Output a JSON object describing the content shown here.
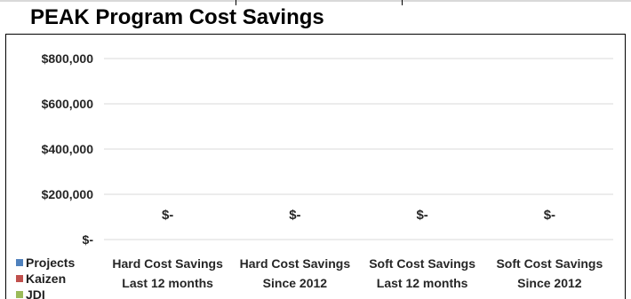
{
  "chart_data": {
    "type": "bar",
    "title": "PEAK Program Cost Savings",
    "categories": [
      "Hard Cost Savings Last 12 months",
      "Hard Cost Savings Since 2012",
      "Soft Cost Savings Last 12 months",
      "Soft Cost Savings Since 2012"
    ],
    "category_lines": [
      [
        "Hard Cost Savings",
        "Last 12 months"
      ],
      [
        "Hard Cost Savings",
        "Since 2012"
      ],
      [
        "Soft Cost Savings",
        "Last 12 months"
      ],
      [
        "Soft Cost Savings",
        "Since 2012"
      ]
    ],
    "series": [
      {
        "name": "Projects",
        "values": [
          0,
          0,
          0,
          0
        ],
        "color": "#4f81bd"
      },
      {
        "name": "Kaizen",
        "values": [
          0,
          0,
          0,
          0
        ],
        "color": "#c0504d"
      },
      {
        "name": "JDI",
        "values": [
          0,
          0,
          0,
          0
        ],
        "color": "#9bbb59"
      }
    ],
    "data_labels": [
      "$-",
      "$-",
      "$-",
      "$-"
    ],
    "yticks": [
      0,
      200000,
      400000,
      600000,
      800000
    ],
    "ytick_labels": [
      "$-",
      "$200,000",
      "$400,000",
      "$600,000",
      "$800,000"
    ],
    "ylim": [
      0,
      800000
    ],
    "xlabel": "",
    "ylabel": "",
    "grid": true,
    "legend_position": "bottom-left"
  }
}
